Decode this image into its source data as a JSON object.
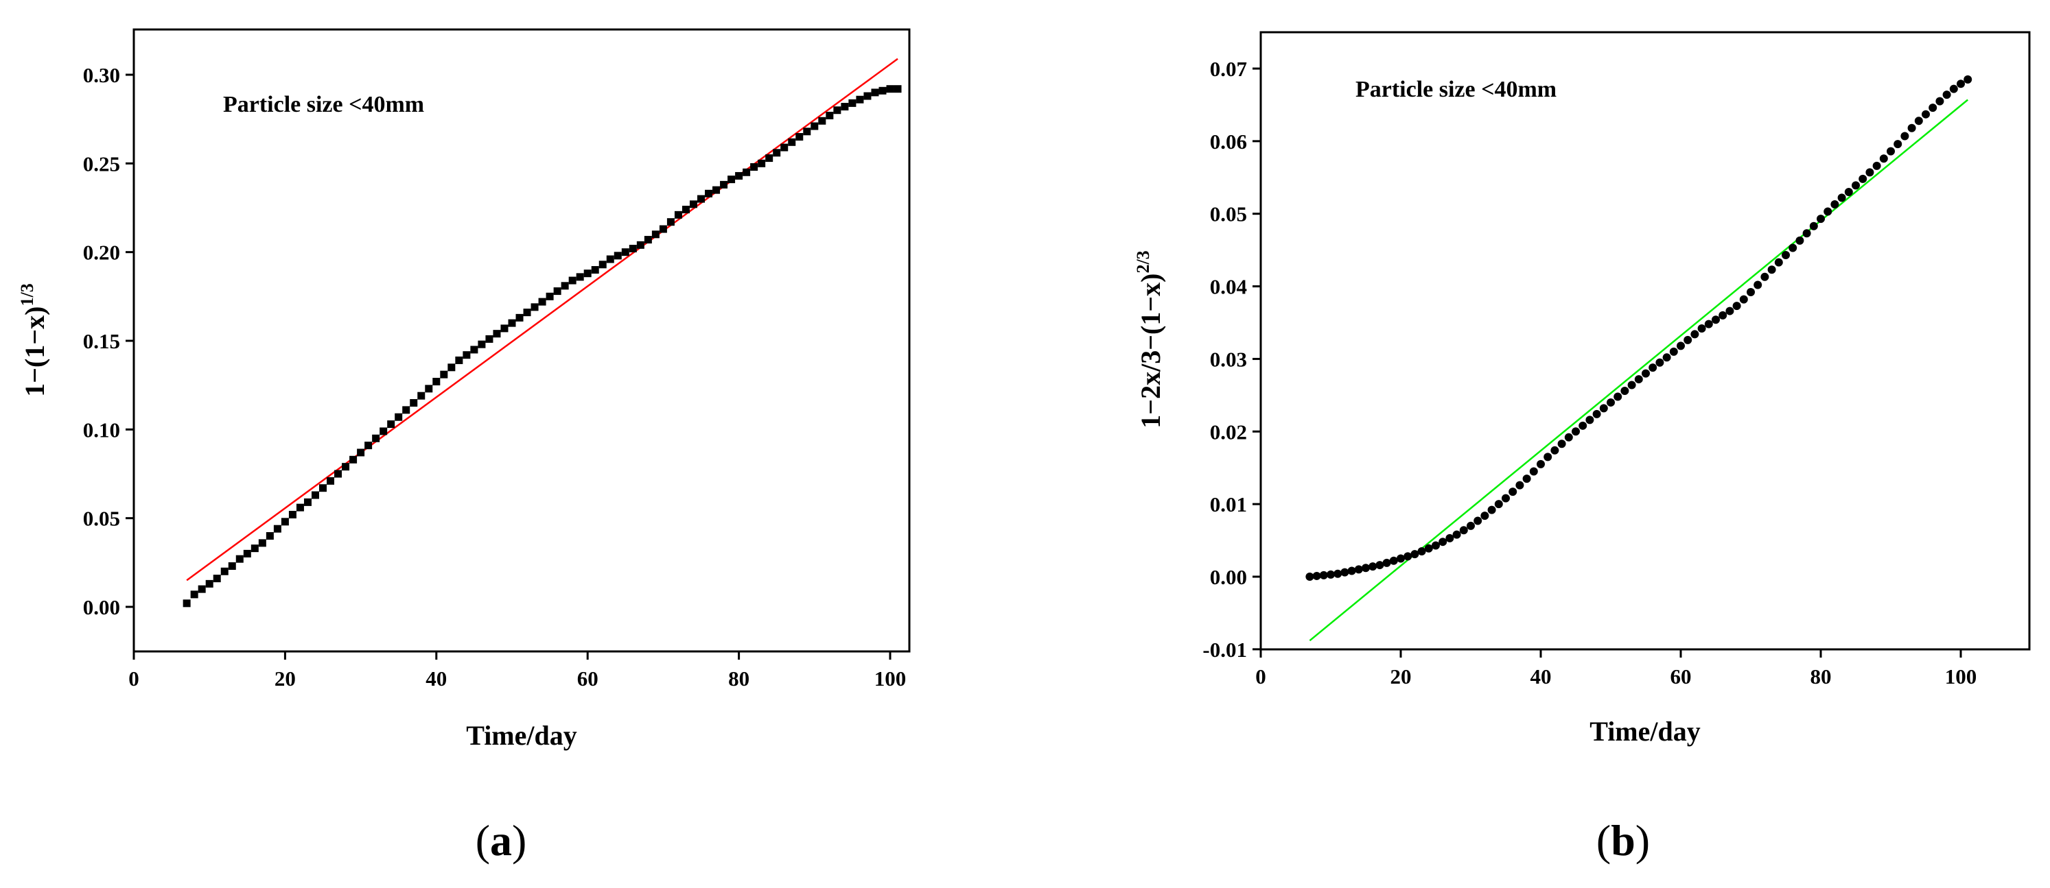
{
  "chart_data": [
    {
      "type": "scatter",
      "panel_label": "a",
      "annotation": "Particle size <40mm",
      "xlabel": "Time/day",
      "ylabel": "1−(1−x)",
      "ylabel_superscript": "1/3",
      "xlim": [
        0,
        110
      ],
      "ylim": [
        -0.025,
        0.325
      ],
      "xticks": [
        0,
        20,
        40,
        60,
        80,
        100
      ],
      "xtick_labels": [
        "0",
        "20",
        "40",
        "60",
        "80",
        "100"
      ],
      "yticks": [
        0.0,
        0.05,
        0.1,
        0.15,
        0.2,
        0.25,
        0.3
      ],
      "ytick_labels": [
        "0.00",
        "0.05",
        "0.10",
        "0.15",
        "0.20",
        "0.25",
        "0.30"
      ],
      "grid": false,
      "series": [
        {
          "marker": "square",
          "color": "#000000",
          "x": [
            7,
            8,
            9,
            10,
            11,
            12,
            13,
            14,
            15,
            16,
            17,
            18,
            19,
            20,
            21,
            22,
            23,
            24,
            25,
            26,
            27,
            28,
            29,
            30,
            31,
            32,
            33,
            34,
            35,
            36,
            37,
            38,
            39,
            40,
            41,
            42,
            43,
            44,
            45,
            46,
            47,
            48,
            49,
            50,
            51,
            52,
            53,
            54,
            55,
            56,
            57,
            58,
            59,
            60,
            61,
            62,
            63,
            64,
            65,
            66,
            67,
            68,
            69,
            70,
            71,
            72,
            73,
            74,
            75,
            76,
            77,
            78,
            79,
            80,
            81,
            82,
            83,
            84,
            85,
            86,
            87,
            88,
            89,
            90,
            91,
            92,
            93,
            94,
            95,
            96,
            97,
            98,
            99,
            100,
            101
          ],
          "y": [
            0.002,
            0.007,
            0.01,
            0.013,
            0.016,
            0.02,
            0.023,
            0.027,
            0.03,
            0.033,
            0.036,
            0.04,
            0.044,
            0.048,
            0.052,
            0.056,
            0.059,
            0.063,
            0.067,
            0.071,
            0.075,
            0.079,
            0.083,
            0.087,
            0.091,
            0.095,
            0.099,
            0.103,
            0.107,
            0.111,
            0.115,
            0.119,
            0.123,
            0.127,
            0.131,
            0.135,
            0.139,
            0.142,
            0.145,
            0.148,
            0.151,
            0.154,
            0.157,
            0.16,
            0.163,
            0.166,
            0.169,
            0.172,
            0.175,
            0.178,
            0.181,
            0.184,
            0.186,
            0.188,
            0.19,
            0.193,
            0.196,
            0.198,
            0.2,
            0.202,
            0.204,
            0.207,
            0.21,
            0.213,
            0.217,
            0.221,
            0.224,
            0.227,
            0.23,
            0.233,
            0.235,
            0.238,
            0.241,
            0.243,
            0.245,
            0.248,
            0.25,
            0.253,
            0.256,
            0.259,
            0.262,
            0.265,
            0.268,
            0.271,
            0.274,
            0.277,
            0.28,
            0.282,
            0.284,
            0.286,
            0.288,
            0.29,
            0.291,
            0.292,
            0.292
          ]
        }
      ],
      "fit_line": {
        "color": "#ff0000",
        "x": [
          7,
          101
        ],
        "y": [
          0.015,
          0.309
        ]
      }
    },
    {
      "type": "scatter",
      "panel_label": "b",
      "annotation": "Particle size <40mm",
      "xlabel": "Time/day",
      "ylabel": "1−2x/3−(1−x)",
      "ylabel_superscript": "2/3",
      "xlim": [
        0,
        110
      ],
      "ylim": [
        -0.01,
        0.075
      ],
      "xticks": [
        0,
        20,
        40,
        60,
        80,
        100
      ],
      "xtick_labels": [
        "0",
        "20",
        "40",
        "60",
        "80",
        "100"
      ],
      "yticks": [
        -0.01,
        0.0,
        0.01,
        0.02,
        0.03,
        0.04,
        0.05,
        0.06,
        0.07
      ],
      "ytick_labels": [
        "-0.01",
        "0.00",
        "0.01",
        "0.02",
        "0.03",
        "0.04",
        "0.05",
        "0.06",
        "0.07"
      ],
      "grid": false,
      "series": [
        {
          "marker": "circle",
          "color": "#000000",
          "x": [
            7,
            8,
            9,
            10,
            11,
            12,
            13,
            14,
            15,
            16,
            17,
            18,
            19,
            20,
            21,
            22,
            23,
            24,
            25,
            26,
            27,
            28,
            29,
            30,
            31,
            32,
            33,
            34,
            35,
            36,
            37,
            38,
            39,
            40,
            41,
            42,
            43,
            44,
            45,
            46,
            47,
            48,
            49,
            50,
            51,
            52,
            53,
            54,
            55,
            56,
            57,
            58,
            59,
            60,
            61,
            62,
            63,
            64,
            65,
            66,
            67,
            68,
            69,
            70,
            71,
            72,
            73,
            74,
            75,
            76,
            77,
            78,
            79,
            80,
            81,
            82,
            83,
            84,
            85,
            86,
            87,
            88,
            89,
            90,
            91,
            92,
            93,
            94,
            95,
            96,
            97,
            98,
            99,
            100,
            101
          ],
          "y": [
            0.0,
            0.0001,
            0.0002,
            0.0003,
            0.0004,
            0.0006,
            0.0008,
            0.001,
            0.0012,
            0.0014,
            0.0016,
            0.0019,
            0.0022,
            0.0025,
            0.0028,
            0.0031,
            0.0035,
            0.0039,
            0.0043,
            0.0048,
            0.0053,
            0.0058,
            0.0064,
            0.007,
            0.0077,
            0.0084,
            0.0092,
            0.01,
            0.0108,
            0.0117,
            0.0126,
            0.0135,
            0.0145,
            0.0155,
            0.0165,
            0.0174,
            0.0183,
            0.0192,
            0.02,
            0.0208,
            0.0216,
            0.0224,
            0.0232,
            0.024,
            0.0248,
            0.0256,
            0.0264,
            0.0272,
            0.028,
            0.0288,
            0.0295,
            0.0302,
            0.031,
            0.0318,
            0.0326,
            0.0334,
            0.0342,
            0.0348,
            0.0354,
            0.036,
            0.0366,
            0.0373,
            0.0382,
            0.0392,
            0.0402,
            0.0413,
            0.0423,
            0.0433,
            0.0443,
            0.0453,
            0.0463,
            0.0473,
            0.0483,
            0.0493,
            0.0503,
            0.0513,
            0.0522,
            0.053,
            0.0539,
            0.0548,
            0.0557,
            0.0566,
            0.0576,
            0.0586,
            0.0596,
            0.0607,
            0.0618,
            0.0628,
            0.0637,
            0.0646,
            0.0655,
            0.0664,
            0.0672,
            0.0679,
            0.0685
          ]
        }
      ],
      "fit_line": {
        "color": "#00ee00",
        "x": [
          7,
          101
        ],
        "y": [
          -0.0088,
          0.0657
        ]
      }
    }
  ]
}
